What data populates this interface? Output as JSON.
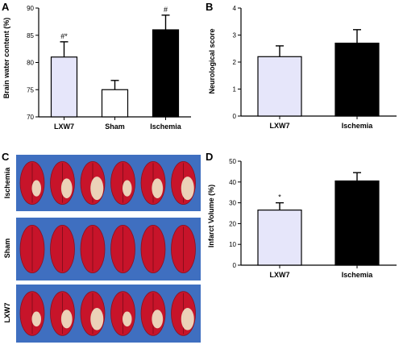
{
  "panel_letters": [
    "A",
    "B",
    "C",
    "D"
  ],
  "panel_c": {
    "row_labels": [
      "Ischemia",
      "Sham",
      "LXW7"
    ]
  },
  "colors": {
    "lxw7": "#e6e6fa",
    "sham": "#ffffff",
    "ischemia": "#000000",
    "photo_bg": "#3f6fc0",
    "tissue": "#c7142a",
    "infarct": "#efe7c8"
  },
  "chart_data": [
    {
      "panel": "A",
      "type": "bar",
      "categories": [
        "LXW7",
        "Sham",
        "Ischemia"
      ],
      "values": [
        81,
        75,
        86
      ],
      "errors": [
        2.8,
        1.7,
        2.7
      ],
      "annotations": [
        "#*",
        "",
        "#"
      ],
      "ylabel": "Brain water content (%)",
      "ylim": [
        70,
        90
      ],
      "yticks": [
        70,
        75,
        80,
        85,
        90
      ]
    },
    {
      "panel": "B",
      "type": "bar",
      "categories": [
        "LXW7",
        "Ischemia"
      ],
      "values": [
        2.2,
        2.7
      ],
      "errors": [
        0.4,
        0.5
      ],
      "annotations": [
        "",
        ""
      ],
      "ylabel": "Neurological score",
      "ylim": [
        0,
        4
      ],
      "yticks": [
        0,
        1,
        2,
        3,
        4
      ]
    },
    {
      "panel": "D",
      "type": "bar",
      "categories": [
        "LXW7",
        "Ischemia"
      ],
      "values": [
        26.5,
        40.5
      ],
      "errors": [
        3.5,
        4.0
      ],
      "annotations": [
        "*",
        ""
      ],
      "ylabel": "Infarct Volume (%)",
      "ylim": [
        0,
        50
      ],
      "yticks": [
        0,
        10,
        20,
        30,
        40,
        50
      ]
    }
  ]
}
